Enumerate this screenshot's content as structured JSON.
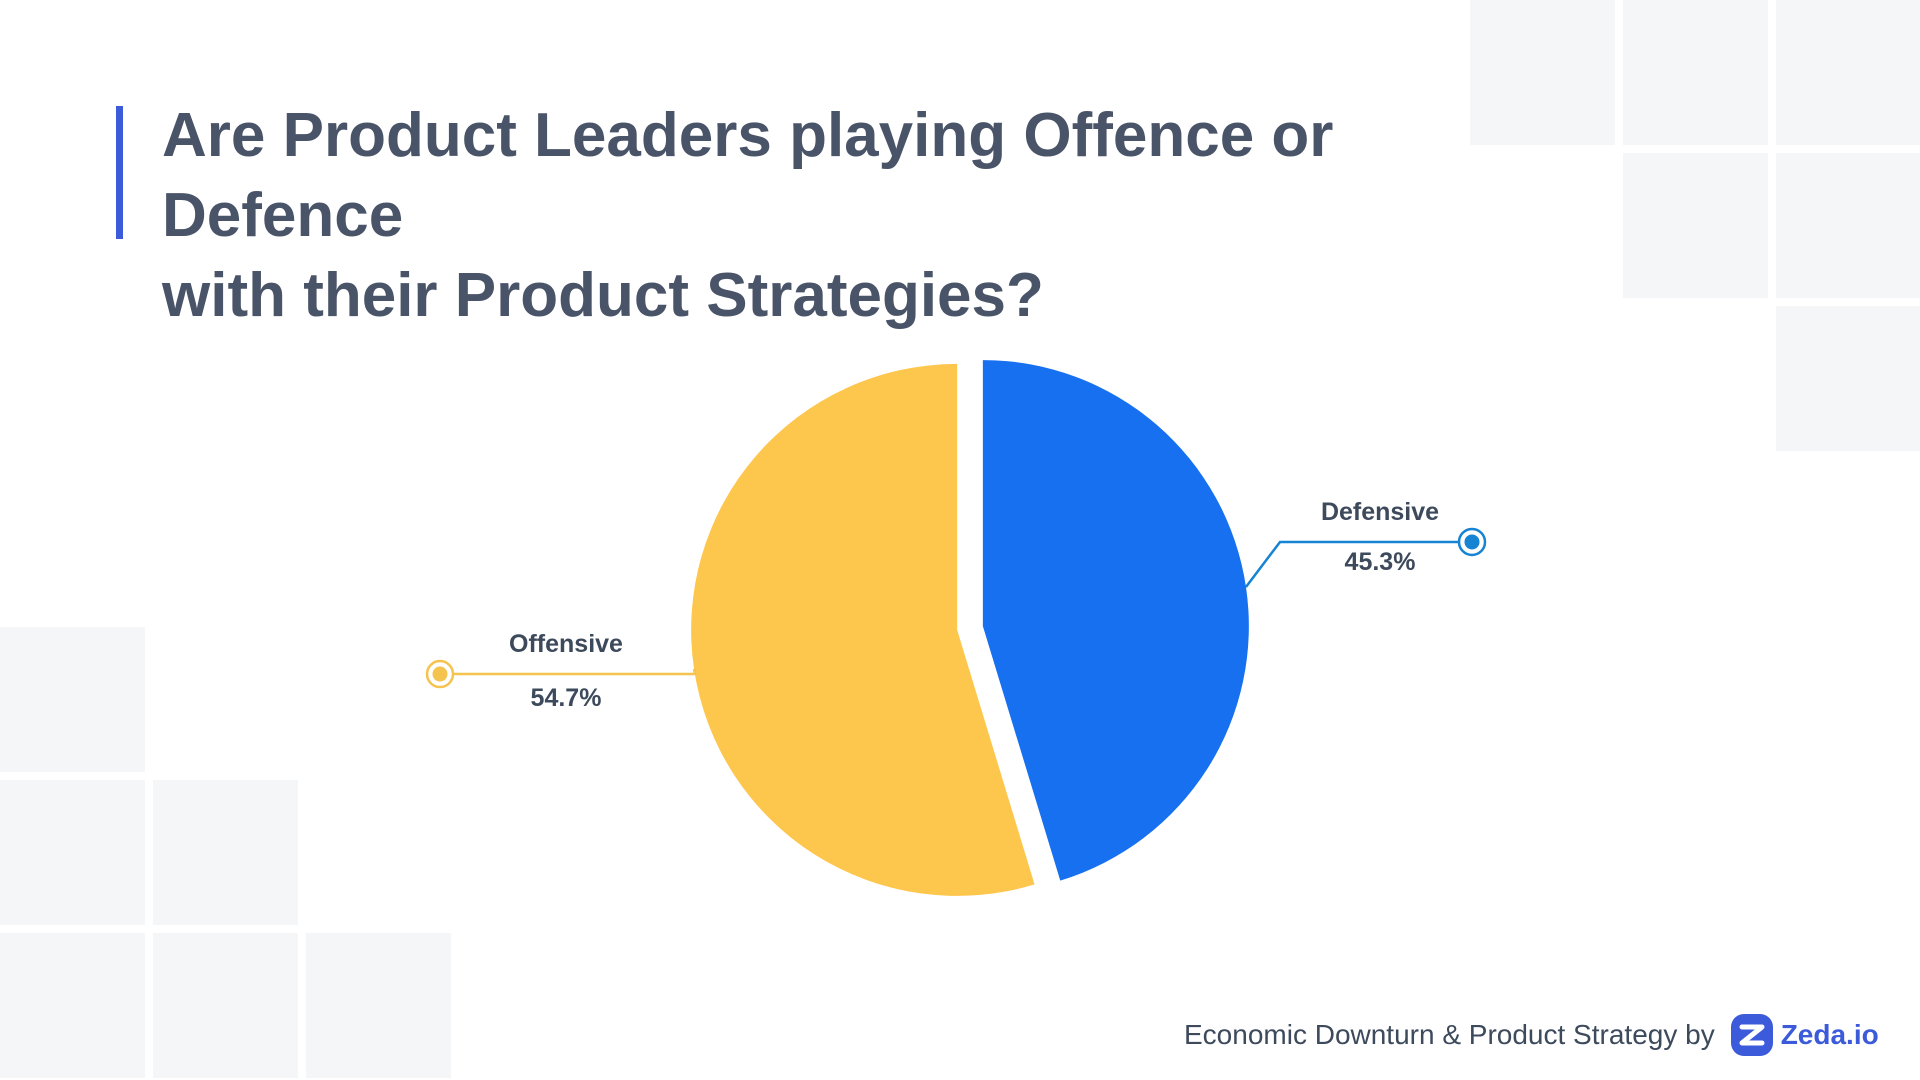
{
  "header": {
    "title_line1": "Are Product Leaders playing Offence or Defence",
    "title_line2": "with their Product Strategies?"
  },
  "chart_data": {
    "type": "pie",
    "title": "Are Product Leaders playing Offence or Defence with their Product Strategies?",
    "slices": [
      {
        "label": "Defensive",
        "value": 45.3,
        "value_label": "45.3%",
        "color": "#1670ef",
        "leader_color": "#1783d3"
      },
      {
        "label": "Offensive",
        "value": 54.7,
        "value_label": "54.7%",
        "color": "#fdc64c",
        "leader_color": "#f5c44e"
      }
    ]
  },
  "footer": {
    "text": "Economic Downturn & Product Strategy by",
    "brand": "Zeda.io",
    "brand_color": "#3b5bdb"
  },
  "colors": {
    "title_text": "#4a5468",
    "accent_bar": "#3b5bdb",
    "background_tile": "#f5f6f8"
  }
}
